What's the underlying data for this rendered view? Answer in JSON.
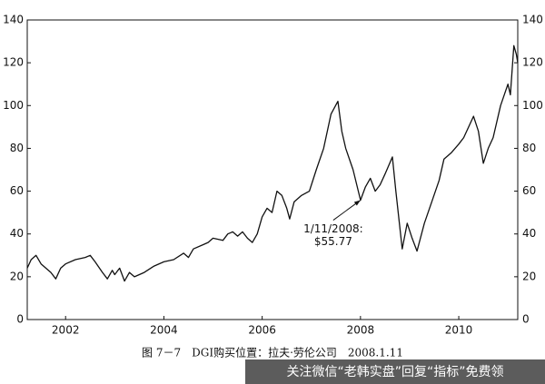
{
  "chart_data": {
    "type": "line",
    "x": [
      2001.22,
      2001.3,
      2001.4,
      2001.5,
      2001.7,
      2001.8,
      2001.9,
      2002.0,
      2002.2,
      2002.4,
      2002.5,
      2002.6,
      2002.75,
      2002.85,
      2002.95,
      2003.0,
      2003.1,
      2003.2,
      2003.3,
      2003.4,
      2003.6,
      2003.8,
      2004.0,
      2004.2,
      2004.4,
      2004.5,
      2004.6,
      2004.8,
      2004.9,
      2005.0,
      2005.2,
      2005.3,
      2005.4,
      2005.5,
      2005.6,
      2005.7,
      2005.8,
      2005.9,
      2006.0,
      2006.1,
      2006.2,
      2006.3,
      2006.4,
      2006.5,
      2006.56,
      2006.65,
      2006.8,
      2006.96,
      2007.1,
      2007.25,
      2007.4,
      2007.54,
      2007.62,
      2007.7,
      2007.85,
      2008.0,
      2008.1,
      2008.2,
      2008.3,
      2008.4,
      2008.5,
      2008.65,
      2008.72,
      2008.85,
      2008.95,
      2009.05,
      2009.15,
      2009.3,
      2009.45,
      2009.6,
      2009.7,
      2009.85,
      2010.0,
      2010.1,
      2010.2,
      2010.3,
      2010.4,
      2010.5,
      2010.6,
      2010.7,
      2010.85,
      2011.0,
      2011.05,
      2011.12,
      2011.17,
      2011.2
    ],
    "values": [
      24,
      28,
      30,
      26,
      22,
      19,
      24,
      26,
      28,
      29,
      30,
      27,
      22,
      19,
      23,
      21,
      24,
      18,
      22,
      20,
      22,
      25,
      27,
      28,
      31,
      29,
      33,
      35,
      36,
      38,
      37,
      40,
      41,
      39,
      41,
      38,
      36,
      40,
      48,
      52,
      50,
      60,
      58,
      52,
      47,
      55,
      58,
      60,
      70,
      80,
      96,
      102,
      88,
      80,
      70,
      55.77,
      62,
      66,
      60,
      63,
      68,
      76,
      60,
      33,
      45,
      38,
      32,
      45,
      55,
      65,
      75,
      78,
      82,
      85,
      90,
      95,
      88,
      73,
      80,
      85,
      100,
      110,
      105,
      128,
      124,
      120
    ],
    "color": "#111111",
    "xlim": [
      2001.22,
      2011.2
    ],
    "xticks": [
      2002,
      2004,
      2006,
      2008,
      2010
    ],
    "ylim": [
      0,
      140
    ],
    "yticks": [
      0,
      20,
      40,
      60,
      80,
      100,
      120,
      140
    ],
    "y2lim": [
      0,
      140
    ],
    "y2ticks": [
      0,
      20,
      40,
      60,
      80,
      100,
      120,
      140
    ],
    "annotation": {
      "lines": [
        "1/11/2008:",
        "$55.77"
      ],
      "x": 2008.0,
      "y": 55.77
    },
    "caption": "图 7－7　DGI购买位置：拉夫·劳伦公司　2008.1.11",
    "watermark": "关注微信“老韩实盘”回复“指标”免费领"
  }
}
